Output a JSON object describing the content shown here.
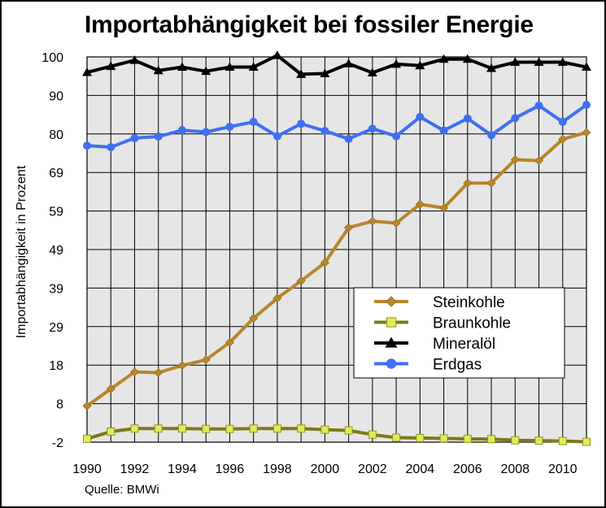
{
  "chart_data": {
    "type": "line",
    "title": "Importabhängigkeit bei fossiler Energie",
    "ylabel": "Importabhängigkeit in Prozent",
    "xlabel": "",
    "source": "Quelle: BMWi",
    "x": [
      1990,
      1991,
      1992,
      1993,
      1994,
      1995,
      1996,
      1997,
      1998,
      1999,
      2000,
      2001,
      2002,
      2003,
      2004,
      2005,
      2006,
      2007,
      2008,
      2009,
      2010,
      2011
    ],
    "xlim": [
      1990,
      2011
    ],
    "xticks": [
      "1990",
      "1992",
      "1994",
      "1996",
      "1998",
      "2000",
      "2002",
      "2004",
      "2006",
      "2008",
      "2010"
    ],
    "yticks": [
      "100",
      "90",
      "80",
      "69",
      "59",
      "49",
      "39",
      "29",
      "18",
      "8",
      "-2"
    ],
    "grid": true,
    "legend_position": "center-right",
    "series": [
      {
        "name": "Steinkohle",
        "color": "#b8862b",
        "marker": "diamond",
        "values": [
          7.6,
          12.1,
          16.6,
          16.4,
          18.3,
          19.8,
          24.4,
          30.8,
          36.1,
          40.7,
          45.5,
          54.8,
          56.5,
          56.0,
          61.0,
          60.0,
          66.6,
          66.6,
          72.8,
          72.5,
          78.2,
          80.0
        ]
      },
      {
        "name": "Braunkohle",
        "color": "#7c7a1c",
        "marker": "square",
        "values": [
          -1.1,
          0.8,
          1.6,
          1.6,
          1.6,
          1.5,
          1.5,
          1.6,
          1.6,
          1.6,
          1.3,
          1.1,
          0.0,
          -0.8,
          -0.9,
          -1.0,
          -1.1,
          -1.2,
          -1.5,
          -1.6,
          -1.7,
          -1.9
        ]
      },
      {
        "name": "Mineralöl",
        "color": "#000000",
        "marker": "triangle",
        "values": [
          95.9,
          97.5,
          99.1,
          96.4,
          97.3,
          96.2,
          97.3,
          97.3,
          100.4,
          95.4,
          95.6,
          98.2,
          95.8,
          98.1,
          97.7,
          99.4,
          99.4,
          97.0,
          98.6,
          98.6,
          98.6,
          97.3
        ]
      },
      {
        "name": "Erdgas",
        "color": "#3f6ff2",
        "marker": "circle",
        "values": [
          76.5,
          76.1,
          78.5,
          78.9,
          80.6,
          80.1,
          81.5,
          82.8,
          79.0,
          82.3,
          80.4,
          78.3,
          81.0,
          79.0,
          84.1,
          80.5,
          83.7,
          79.3,
          83.8,
          87.1,
          82.8,
          87.3
        ]
      }
    ]
  }
}
